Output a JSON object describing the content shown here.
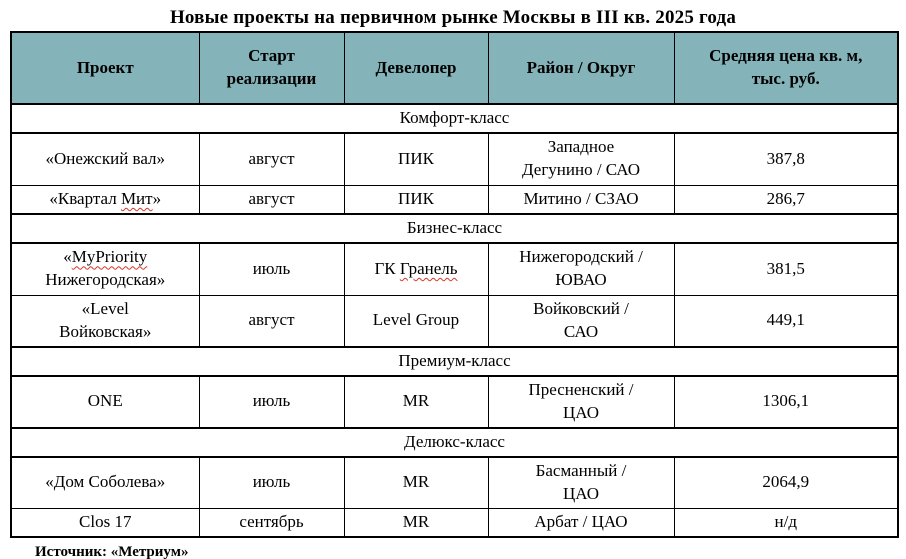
{
  "title": "Новые проекты на первичном рынке Москвы в III кв. 2025 года",
  "colors": {
    "header_bg": "#84b3b9",
    "border": "#000000",
    "spellcheck_underline": "#d5352a",
    "text": "#000000",
    "background": "#ffffff"
  },
  "table": {
    "headers": [
      "Проект",
      "Старт\nреализации",
      "Девелопер",
      "Район / Округ",
      "Средняя цена кв. м,\nтыс. руб."
    ],
    "sections": [
      {
        "label": "Комфорт-класс",
        "rows": [
          {
            "project": {
              "pre": "«Онежский вал»",
              "mis": "",
              "post": ""
            },
            "start": "август",
            "developer": {
              "pre": "ПИК",
              "mis": "",
              "post": ""
            },
            "district": "Западное\nДегунино / САО",
            "price": "387,8"
          },
          {
            "project": {
              "pre": "«Квартал ",
              "mis": "Мит",
              "post": "»"
            },
            "start": "август",
            "developer": {
              "pre": "ПИК",
              "mis": "",
              "post": ""
            },
            "district": "Митино / СЗАО",
            "price": "286,7"
          }
        ]
      },
      {
        "label": "Бизнес-класс",
        "rows": [
          {
            "project": {
              "pre": "«",
              "mis": "MyPriority",
              "post": "\nНижегородская»"
            },
            "start": "июль",
            "developer": {
              "pre": "ГК ",
              "mis": "Гранель",
              "post": ""
            },
            "district": "Нижегородский /\nЮВАО",
            "price": "381,5"
          },
          {
            "project": {
              "pre": "«Level\nВойковская»",
              "mis": "",
              "post": ""
            },
            "start": "август",
            "developer": {
              "pre": "Level Group",
              "mis": "",
              "post": ""
            },
            "district": "Войковский /\nСАО",
            "price": "449,1"
          }
        ]
      },
      {
        "label": "Премиум-класс",
        "rows": [
          {
            "project": {
              "pre": "ONE",
              "mis": "",
              "post": ""
            },
            "start": "июль",
            "developer": {
              "pre": "MR",
              "mis": "",
              "post": ""
            },
            "district": "Пресненский /\nЦАО",
            "price": "1306,1"
          }
        ]
      },
      {
        "label": "Делюкс-класс",
        "rows": [
          {
            "project": {
              "pre": "«Дом Соболева»",
              "mis": "",
              "post": ""
            },
            "start": "июль",
            "developer": {
              "pre": "MR",
              "mis": "",
              "post": ""
            },
            "district": "Басманный /\nЦАО",
            "price": "2064,9"
          },
          {
            "project": {
              "pre": "Clos 17",
              "mis": "",
              "post": ""
            },
            "start": "сентябрь",
            "developer": {
              "pre": "MR",
              "mis": "",
              "post": ""
            },
            "district": "Арбат / ЦАО",
            "price": "н/д"
          }
        ]
      }
    ]
  },
  "source": {
    "pre": "Источник: «",
    "mis": "Метриум",
    "post": "»"
  },
  "chart_data": {
    "type": "table",
    "title": "Новые проекты на первичном рынке Москвы в III кв. 2025 года",
    "columns": [
      "Проект",
      "Старт реализации",
      "Девелопер",
      "Район / Округ",
      "Средняя цена кв. м, тыс. руб."
    ],
    "groups": [
      {
        "group": "Комфорт-класс",
        "rows": [
          [
            "«Онежский вал»",
            "август",
            "ПИК",
            "Западное Дегунино / САО",
            "387,8"
          ],
          [
            "«Квартал Мит»",
            "август",
            "ПИК",
            "Митино / СЗАО",
            "286,7"
          ]
        ]
      },
      {
        "group": "Бизнес-класс",
        "rows": [
          [
            "«MyPriority Нижегородская»",
            "июль",
            "ГК Гранель",
            "Нижегородский / ЮВАО",
            "381,5"
          ],
          [
            "«Level Войковская»",
            "август",
            "Level Group",
            "Войковский / САО",
            "449,1"
          ]
        ]
      },
      {
        "group": "Премиум-класс",
        "rows": [
          [
            "ONE",
            "июль",
            "MR",
            "Пресненский / ЦАО",
            "1306,1"
          ]
        ]
      },
      {
        "group": "Делюкс-класс",
        "rows": [
          [
            "«Дом Соболева»",
            "июль",
            "MR",
            "Басманный / ЦАО",
            "2064,9"
          ],
          [
            "Clos 17",
            "сентябрь",
            "MR",
            "Арбат / ЦАО",
            "н/д"
          ]
        ]
      }
    ],
    "source": "Источник: «Метриум»"
  }
}
